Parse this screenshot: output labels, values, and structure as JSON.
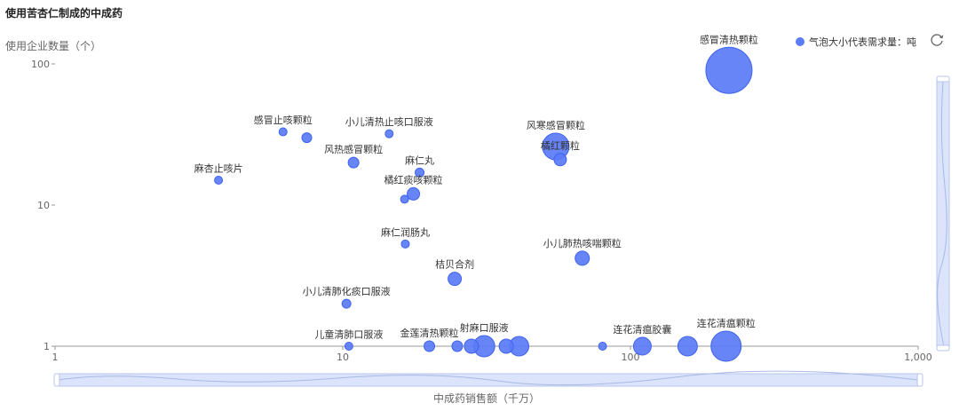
{
  "title": "使用苦杏仁制成的中成药",
  "legend_label": "气泡大小代表需求量：吨",
  "toolbar": {
    "refresh_icon": "refresh-icon"
  },
  "colors": {
    "bubble": "#5b7bf7",
    "bubble_dark": "#3f63f0",
    "axis": "#999999",
    "slider_fill": "#dbe4fb",
    "slider_stroke": "#b8c6ee"
  },
  "chart_data": {
    "type": "scatter",
    "title": "使用苦杏仁制成的中成药",
    "xlabel": "中成药销售额（千万）",
    "ylabel": "使用企业数量（个）",
    "x_scale": "log",
    "y_scale": "log",
    "xlim": [
      1,
      1000
    ],
    "ylim": [
      1,
      100
    ],
    "x_ticks": [
      {
        "value": 1,
        "label": "1"
      },
      {
        "value": 10,
        "label": "10"
      },
      {
        "value": 100,
        "label": "100"
      },
      {
        "value": 1000,
        "label": "1,000"
      }
    ],
    "y_ticks": [
      {
        "value": 1,
        "label": "1"
      },
      {
        "value": 10,
        "label": "10"
      },
      {
        "value": 100,
        "label": "100"
      }
    ],
    "grid": false,
    "legend_position": "top-right",
    "points": [
      {
        "label": "感冒清热颗粒",
        "x": 220,
        "y": 90,
        "size": 52
      },
      {
        "label": "风寒感冒颗粒",
        "x": 55,
        "y": 26,
        "size": 30
      },
      {
        "label": "橘红颗粒",
        "x": 57,
        "y": 21,
        "size": 14
      },
      {
        "label": "小儿肺热咳喘颗粒",
        "x": 68,
        "y": 4.2,
        "size": 16
      },
      {
        "label": "连花清瘟胶囊",
        "x": 110,
        "y": 1.0,
        "size": 20
      },
      {
        "label": "",
        "x": 158,
        "y": 1.0,
        "size": 22
      },
      {
        "label": "连花清瘟颗粒",
        "x": 215,
        "y": 1.0,
        "size": 34
      },
      {
        "label": "",
        "x": 80,
        "y": 1.0,
        "size": 9
      },
      {
        "label": "射麻口服液",
        "x": 31,
        "y": 1.0,
        "size": 24
      },
      {
        "label": "",
        "x": 28,
        "y": 1.0,
        "size": 16
      },
      {
        "label": "",
        "x": 37,
        "y": 1.0,
        "size": 16
      },
      {
        "label": "",
        "x": 41,
        "y": 1.0,
        "size": 22
      },
      {
        "label": "",
        "x": 25,
        "y": 1.0,
        "size": 12
      },
      {
        "label": "金莲清热颗粒",
        "x": 20,
        "y": 1.0,
        "size": 12
      },
      {
        "label": "儿童清肺口服液",
        "x": 10.5,
        "y": 1.0,
        "size": 9
      },
      {
        "label": "桔贝合剂",
        "x": 24.5,
        "y": 3.0,
        "size": 15
      },
      {
        "label": "小儿清肺化痰口服液",
        "x": 10.3,
        "y": 2.0,
        "size": 10
      },
      {
        "label": "麻仁润肠丸",
        "x": 16.5,
        "y": 5.3,
        "size": 9
      },
      {
        "label": "橘红痰咳颗粒",
        "x": 17.6,
        "y": 12,
        "size": 14
      },
      {
        "label": "",
        "x": 16.4,
        "y": 11,
        "size": 9
      },
      {
        "label": "麻仁丸",
        "x": 18.5,
        "y": 17,
        "size": 10
      },
      {
        "label": "风热感冒颗粒",
        "x": 10.9,
        "y": 20,
        "size": 12
      },
      {
        "label": "感冒止咳颗粒",
        "x": 6.2,
        "y": 33,
        "size": 9
      },
      {
        "label": "",
        "x": 7.5,
        "y": 30,
        "size": 11
      },
      {
        "label": "小儿清热止咳口服液",
        "x": 14.5,
        "y": 32,
        "size": 9
      },
      {
        "label": "麻杏止咳片",
        "x": 3.7,
        "y": 15,
        "size": 9
      }
    ]
  }
}
